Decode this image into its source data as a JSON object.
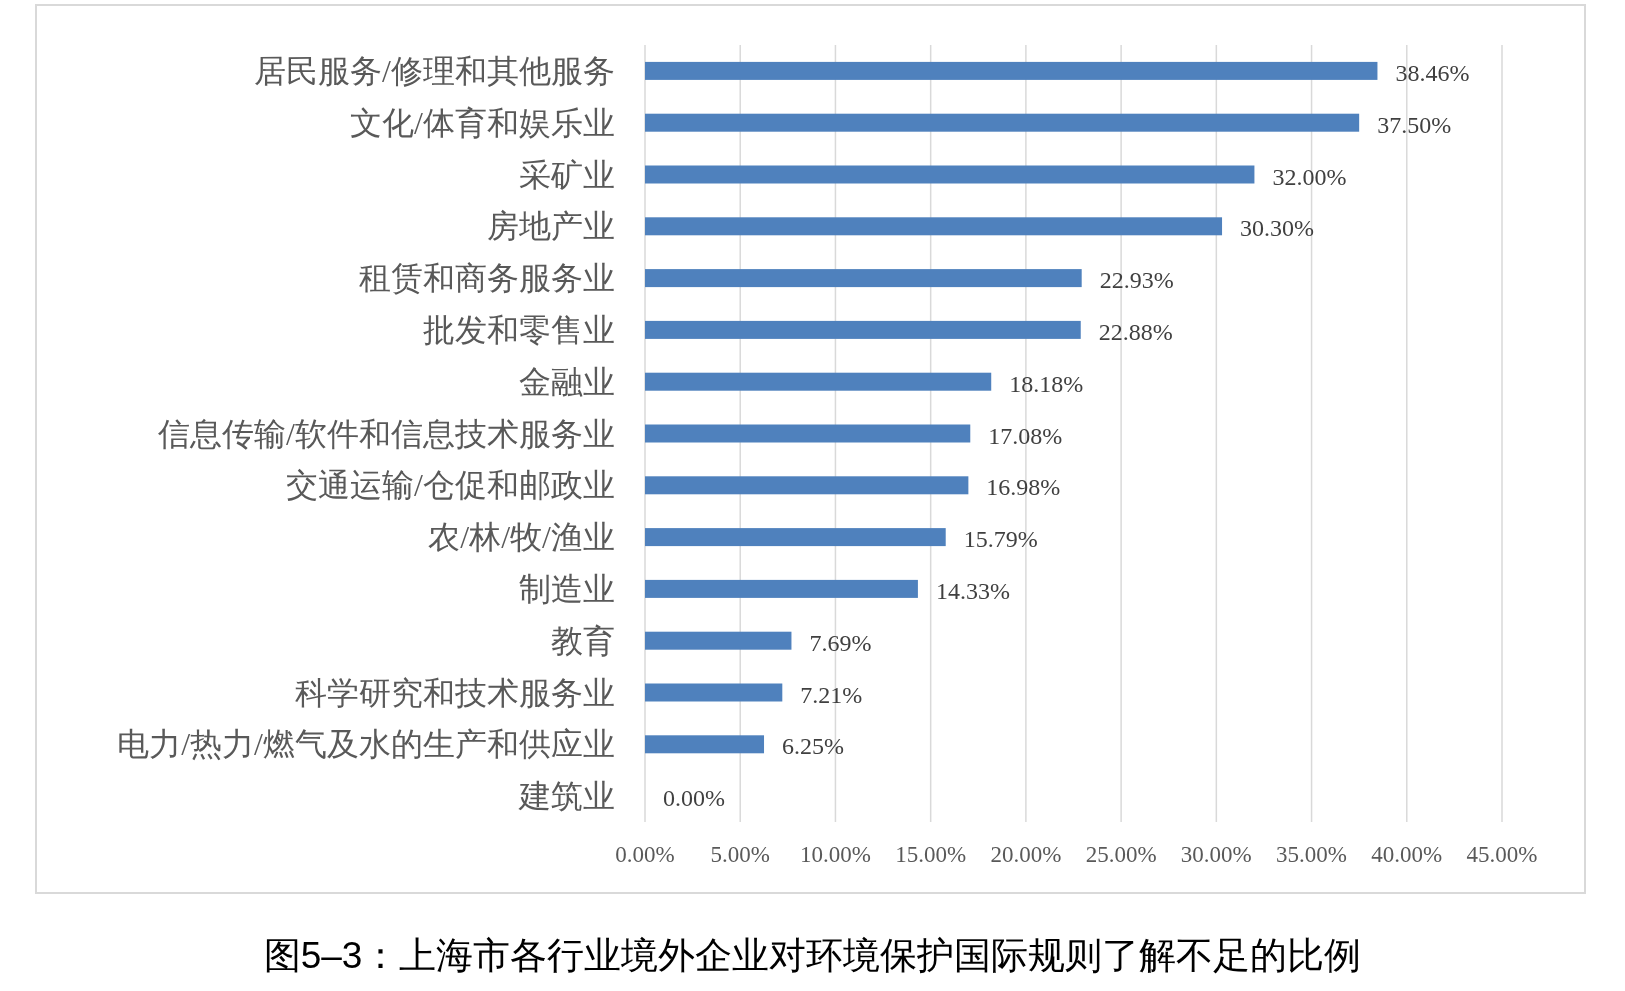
{
  "chart_data": {
    "type": "bar",
    "orientation": "horizontal",
    "title": "图5–3：上海市各行业境外企业对环境保护国际规则了解不足的比例",
    "categories": [
      "居民服务/修理和其他服务",
      "文化/体育和娱乐业",
      "采矿业",
      "房地产业",
      "租赁和商务服务业",
      "批发和零售业",
      "金融业",
      "信息传输/软件和信息技术服务业",
      "交通运输/仓促和邮政业",
      "农/林/牧/渔业",
      "制造业",
      "教育",
      "科学研究和技术服务业",
      "电力/热力/燃气及水的生产和供应业",
      "建筑业"
    ],
    "values": [
      38.46,
      37.5,
      32.0,
      30.3,
      22.93,
      22.88,
      18.18,
      17.08,
      16.98,
      15.79,
      14.33,
      7.69,
      7.21,
      6.25,
      0.0
    ],
    "value_labels": [
      "38.46%",
      "37.50%",
      "32.00%",
      "30.30%",
      "22.93%",
      "22.88%",
      "18.18%",
      "17.08%",
      "16.98%",
      "15.79%",
      "14.33%",
      "7.69%",
      "7.21%",
      "6.25%",
      "0.00%"
    ],
    "color": "#4f81bd",
    "xlim": [
      0,
      45
    ],
    "xticks": [
      {
        "value": 0,
        "label": "0.00%"
      },
      {
        "value": 5,
        "label": "5.00%"
      },
      {
        "value": 10,
        "label": "10.00%"
      },
      {
        "value": 15,
        "label": "15.00%"
      },
      {
        "value": 20,
        "label": "20.00%"
      },
      {
        "value": 25,
        "label": "25.00%"
      },
      {
        "value": 30,
        "label": "30.00%"
      },
      {
        "value": 35,
        "label": "35.00%"
      },
      {
        "value": 40,
        "label": "40.00%"
      },
      {
        "value": 45,
        "label": "45.00%"
      }
    ],
    "grid": "x"
  }
}
